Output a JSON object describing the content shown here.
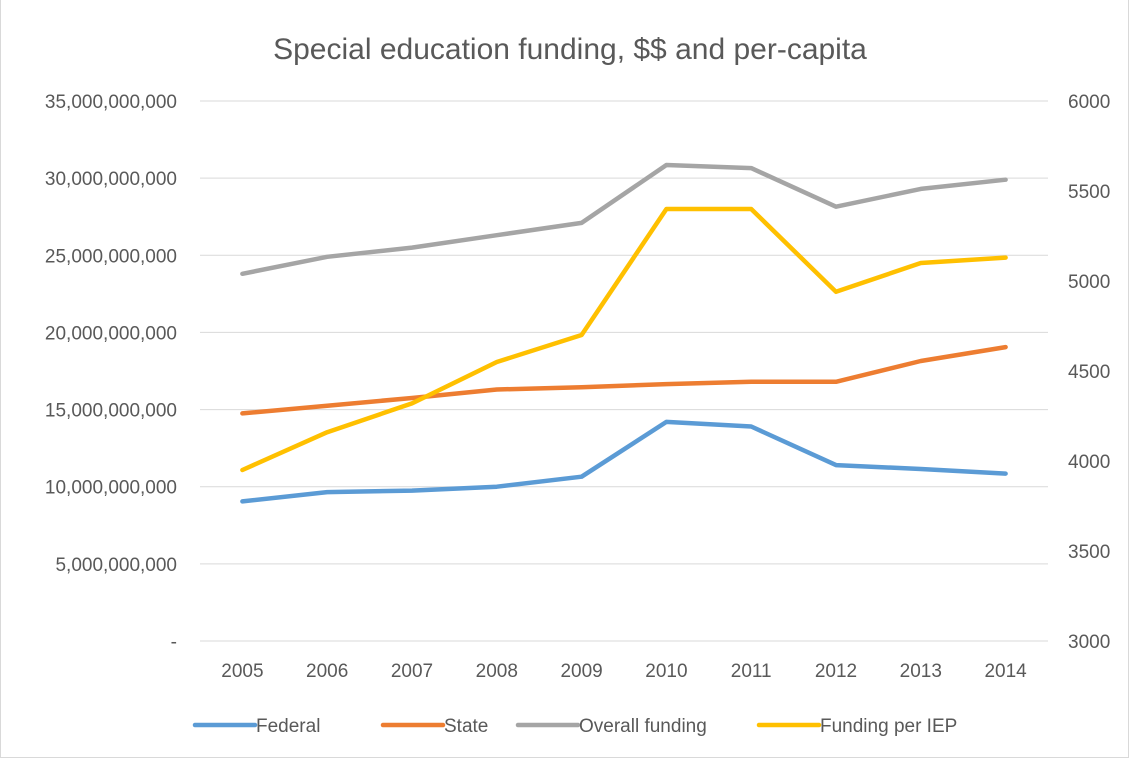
{
  "chart_data": {
    "type": "line",
    "title": "Special education funding, $$ and per-capita",
    "categories": [
      "2005",
      "2006",
      "2007",
      "2008",
      "2009",
      "2010",
      "2011",
      "2012",
      "2013",
      "2014"
    ],
    "y_left": {
      "ylim": [
        0,
        35000000000
      ],
      "tick_labels": [
        "-",
        "5,000,000,000",
        "10,000,000,000",
        "15,000,000,000",
        "20,000,000,000",
        "25,000,000,000",
        "30,000,000,000",
        "35,000,000,000"
      ]
    },
    "y_right": {
      "ylim": [
        3000,
        6000
      ],
      "tick_labels": [
        "3000",
        "3500",
        "4000",
        "4500",
        "5000",
        "5500",
        "6000"
      ]
    },
    "grid": true,
    "legend_position": "bottom",
    "series": [
      {
        "name": "Federal",
        "axis": "left",
        "color": "#5b9bd5",
        "values": [
          9050000000,
          9650000000,
          9750000000,
          10000000000,
          10650000000,
          14200000000,
          13900000000,
          11400000000,
          11150000000,
          10850000000
        ]
      },
      {
        "name": "State",
        "axis": "left",
        "color": "#ed7d31",
        "values": [
          14750000000,
          15250000000,
          15750000000,
          16300000000,
          16450000000,
          16650000000,
          16800000000,
          16800000000,
          18150000000,
          19050000000
        ]
      },
      {
        "name": "Overall funding",
        "axis": "left",
        "color": "#a5a5a5",
        "values": [
          23800000000,
          24900000000,
          25500000000,
          26300000000,
          27100000000,
          30850000000,
          30650000000,
          28150000000,
          29300000000,
          29900000000
        ]
      },
      {
        "name": "Funding per IEP",
        "axis": "right",
        "color": "#ffc000",
        "values": [
          3950,
          4160,
          4320,
          4550,
          4700,
          5400,
          5400,
          4940,
          5100,
          5130
        ]
      }
    ]
  }
}
